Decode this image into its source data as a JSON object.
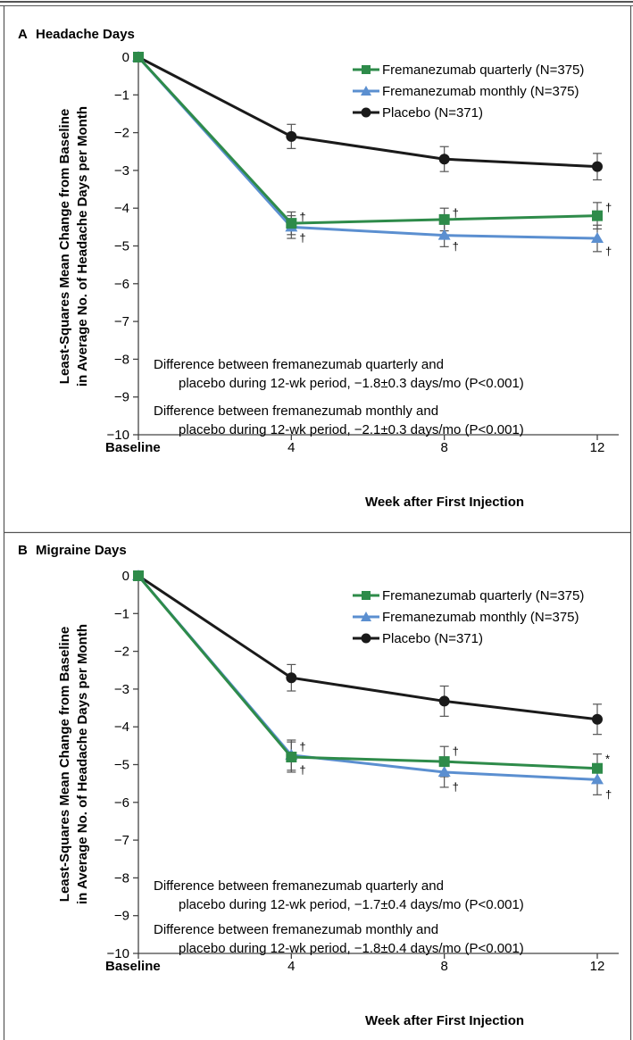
{
  "colors": {
    "frame": "#555555",
    "quarterly": "#2e8b4a",
    "monthly": "#5b8fd0",
    "placebo": "#1a1a1a",
    "error_bar": "#555555"
  },
  "chart_data": [
    {
      "type": "line",
      "panel_letter": "A",
      "title": "Headache Days",
      "ylabel_line1": "Least-Squares Mean Change from Baseline",
      "ylabel_line2": "in Average No. of Headache Days per Month",
      "xlabel": "Week after First Injection",
      "x": [
        0,
        4,
        8,
        12
      ],
      "x_tick_labels": [
        "Baseline",
        "4",
        "8",
        "12"
      ],
      "ylim": [
        -10,
        0
      ],
      "y_ticks": [
        0,
        -1,
        -2,
        -3,
        -4,
        -5,
        -6,
        -7,
        -8,
        -9,
        -10
      ],
      "y_tick_labels": [
        "0",
        "−1",
        "−2",
        "−3",
        "−4",
        "−5",
        "−6",
        "−7",
        "−8",
        "−9",
        "−10"
      ],
      "legend_position": "top-right",
      "series": [
        {
          "name": "Fremanezumab quarterly (N=375)",
          "key": "quarterly",
          "marker": "square",
          "values": [
            0,
            -4.4,
            -4.3,
            -4.2
          ],
          "errors": [
            0,
            0.3,
            0.3,
            0.35
          ],
          "annotations": [
            "",
            "†",
            "†",
            "†"
          ]
        },
        {
          "name": "Fremanezumab monthly (N=375)",
          "key": "monthly",
          "marker": "triangle",
          "values": [
            0,
            -4.5,
            -4.72,
            -4.8
          ],
          "errors": [
            0,
            0.3,
            0.3,
            0.35
          ],
          "annotations": [
            "",
            "†",
            "†",
            "†"
          ]
        },
        {
          "name": "Placebo (N=371)",
          "key": "placebo",
          "marker": "circle",
          "values": [
            0,
            -2.1,
            -2.7,
            -2.9
          ],
          "errors": [
            0,
            0.32,
            0.33,
            0.35
          ],
          "annotations": [
            "",
            "",
            "",
            ""
          ]
        }
      ],
      "notes": [
        {
          "line1": "Difference between fremanezumab quarterly and",
          "line2": "placebo during 12-wk period, −1.8±0.3 days/mo (P<0.001)"
        },
        {
          "line1": "Difference between fremanezumab monthly and",
          "line2": "placebo during 12-wk period, −2.1±0.3 days/mo (P<0.001)"
        }
      ]
    },
    {
      "type": "line",
      "panel_letter": "B",
      "title": "Migraine Days",
      "ylabel_line1": "Least-Squares Mean Change from Baseline",
      "ylabel_line2": "in Average No. of Headache Days per Month",
      "xlabel": "Week after First Injection",
      "x": [
        0,
        4,
        8,
        12
      ],
      "x_tick_labels": [
        "Baseline",
        "4",
        "8",
        "12"
      ],
      "ylim": [
        -10,
        0
      ],
      "y_ticks": [
        0,
        -1,
        -2,
        -3,
        -4,
        -5,
        -6,
        -7,
        -8,
        -9,
        -10
      ],
      "y_tick_labels": [
        "0",
        "−1",
        "−2",
        "−3",
        "−4",
        "−5",
        "−6",
        "−7",
        "−8",
        "−9",
        "−10"
      ],
      "legend_position": "top-right",
      "series": [
        {
          "name": "Fremanezumab quarterly (N=375)",
          "key": "quarterly",
          "marker": "square",
          "values": [
            0,
            -4.8,
            -4.92,
            -5.1
          ],
          "errors": [
            0,
            0.4,
            0.4,
            0.38
          ],
          "annotations": [
            "",
            "†",
            "†",
            "*"
          ]
        },
        {
          "name": "Fremanezumab monthly (N=375)",
          "key": "monthly",
          "marker": "triangle",
          "values": [
            0,
            -4.75,
            -5.2,
            -5.4
          ],
          "errors": [
            0,
            0.4,
            0.4,
            0.4
          ],
          "annotations": [
            "",
            "†",
            "†",
            "†"
          ]
        },
        {
          "name": "Placebo (N=371)",
          "key": "placebo",
          "marker": "circle",
          "values": [
            0,
            -2.7,
            -3.32,
            -3.8
          ],
          "errors": [
            0,
            0.35,
            0.4,
            0.4
          ],
          "annotations": [
            "",
            "",
            "",
            ""
          ]
        }
      ],
      "notes": [
        {
          "line1": "Difference between fremanezumab quarterly and",
          "line2": "placebo during 12-wk period, −1.7±0.4 days/mo (P<0.001)"
        },
        {
          "line1": "Difference between fremanezumab monthly and",
          "line2": "placebo during 12-wk period, −1.8±0.4 days/mo (P<0.001)"
        }
      ]
    }
  ]
}
